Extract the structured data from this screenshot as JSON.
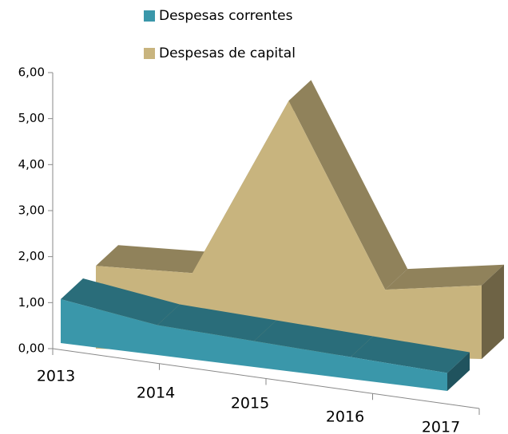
{
  "chart_data": {
    "type": "area3d",
    "categories": [
      "2013",
      "2014",
      "2015",
      "2016",
      "2017"
    ],
    "series": [
      {
        "name": "Despesas correntes",
        "color": "#3a97aa",
        "values": [
          1.1,
          0.75,
          0.65,
          0.55,
          0.45
        ]
      },
      {
        "name": "Despesas de capital",
        "color": "#c8b47e",
        "values": [
          1.8,
          1.7,
          5.5,
          1.45,
          1.6
        ]
      }
    ],
    "ylim": [
      0,
      6
    ],
    "yticks": [
      {
        "value": 0,
        "label": "0,00"
      },
      {
        "value": 1,
        "label": "1,00"
      },
      {
        "value": 2,
        "label": "2,00"
      },
      {
        "value": 3,
        "label": "3,00"
      },
      {
        "value": 4,
        "label": "4,00"
      },
      {
        "value": 5,
        "label": "5,00"
      },
      {
        "value": 6,
        "label": "6,00"
      }
    ]
  }
}
